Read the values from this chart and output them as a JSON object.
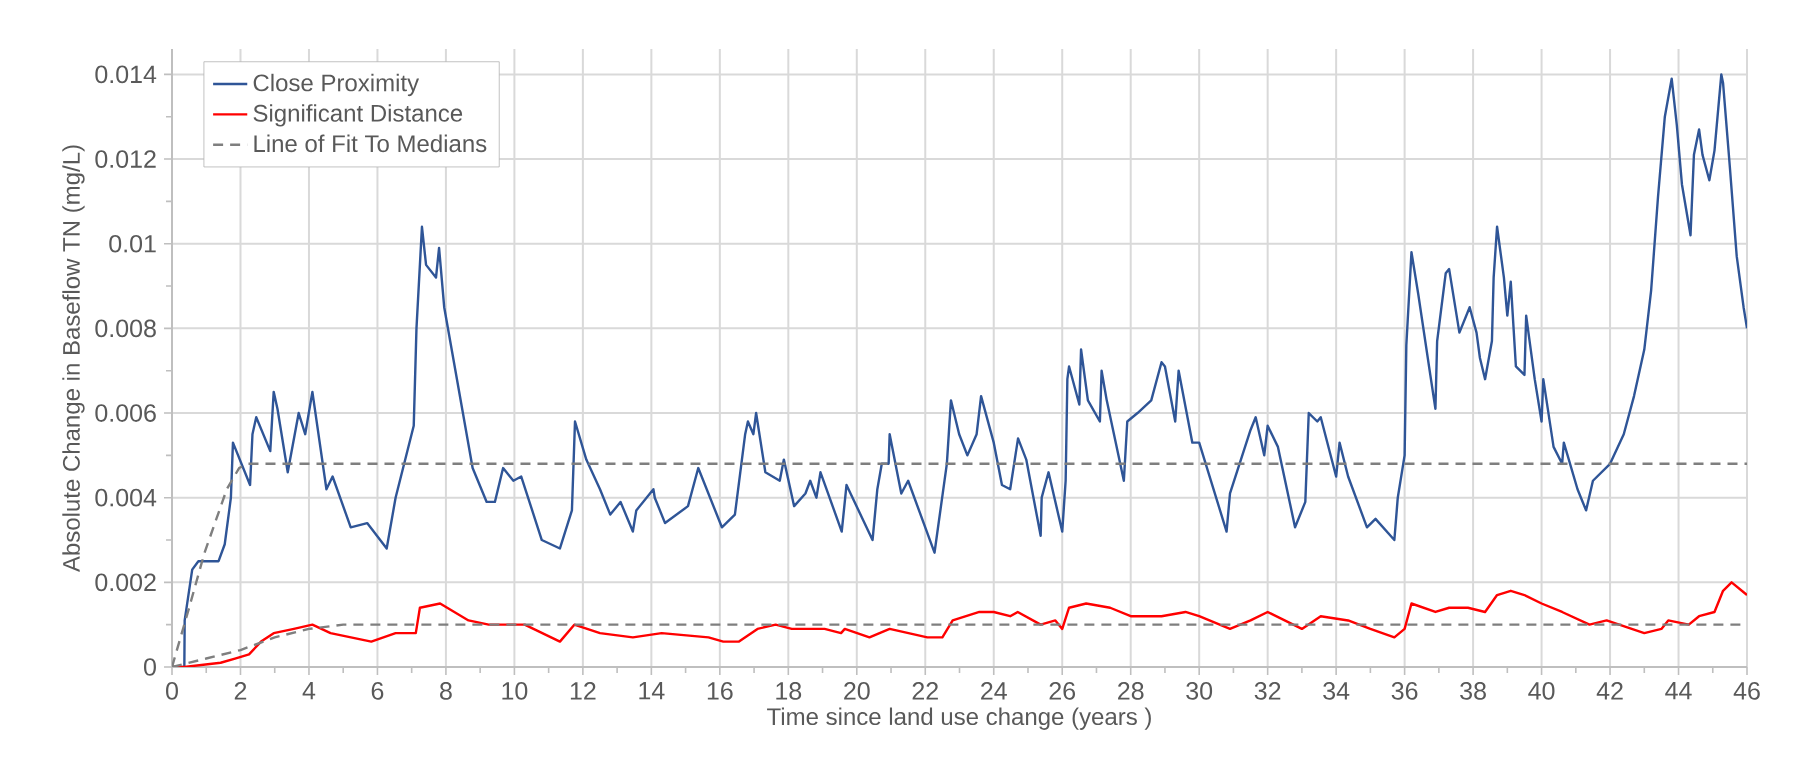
{
  "chart_data": {
    "type": "line",
    "xlabel": "Time since land use change (years )",
    "ylabel": "Absolute Change in Baseflow TN (mg/L)",
    "xlim": [
      0,
      46
    ],
    "ylim": [
      0,
      0.0146
    ],
    "xticks": [
      0,
      2,
      4,
      6,
      8,
      10,
      12,
      14,
      16,
      18,
      20,
      22,
      24,
      26,
      28,
      30,
      32,
      34,
      36,
      38,
      40,
      42,
      44,
      46
    ],
    "yticks": [
      0,
      0.002,
      0.004,
      0.006,
      0.008,
      0.01,
      0.012,
      0.014
    ],
    "grid": true,
    "legend": "top left",
    "line_style": "solid",
    "series": [
      {
        "name": "Close Proximity",
        "color": "#2f5597",
        "x": [
          0,
          0.36,
          0.37,
          0.59,
          0.77,
          1.36,
          1.54,
          1.72,
          1.78,
          2.28,
          2.35,
          2.46,
          2.87,
          2.97,
          3.08,
          3.38,
          3.7,
          3.89,
          4.1,
          4.51,
          4.69,
          5.22,
          5.7,
          6.27,
          6.53,
          7.06,
          7.14,
          7.3,
          7.42,
          7.71,
          7.8,
          7.95,
          8.3,
          8.78,
          9.19,
          9.43,
          9.67,
          9.97,
          10.2,
          10.8,
          11.33,
          11.68,
          11.77,
          12.1,
          12.5,
          12.8,
          13.1,
          13.46,
          13.56,
          14.06,
          14.1,
          14.4,
          15.07,
          15.37,
          16.06,
          16.44,
          16.74,
          16.82,
          16.98,
          17.06,
          17.33,
          17.75,
          17.87,
          18.17,
          18.5,
          18.64,
          18.82,
          18.94,
          19.56,
          19.7,
          20.46,
          20.6,
          20.73,
          20.93,
          20.96,
          21.3,
          21.5,
          22.27,
          22.63,
          22.75,
          22.99,
          23.23,
          23.5,
          23.63,
          24.0,
          24.24,
          24.48,
          24.71,
          24.95,
          25.37,
          25.4,
          25.6,
          26.0,
          26.1,
          26.15,
          26.2,
          26.5,
          26.55,
          26.6,
          26.75,
          27.1,
          27.15,
          27.3,
          27.8,
          27.9,
          28.2,
          28.6,
          28.9,
          29.0,
          29.3,
          29.4,
          29.8,
          30.0,
          30.8,
          30.9,
          31.5,
          31.65,
          31.9,
          32.0,
          32.3,
          32.8,
          33.1,
          33.2,
          33.45,
          33.55,
          34.0,
          34.1,
          34.35,
          34.9,
          35.15,
          35.7,
          35.8,
          36.0,
          36.05,
          36.2,
          36.4,
          36.75,
          36.9,
          36.95,
          37.2,
          37.3,
          37.6,
          37.9,
          38.1,
          38.2,
          38.35,
          38.55,
          38.6,
          38.7,
          38.9,
          39.0,
          39.1,
          39.25,
          39.5,
          39.55,
          39.8,
          40.0,
          40.05,
          40.35,
          40.6,
          40.65,
          41.05,
          41.3,
          41.5,
          42.0,
          42.4,
          42.7,
          43.0,
          43.2,
          43.4,
          43.6,
          43.8,
          43.95,
          44.1,
          44.35,
          44.45,
          44.6,
          44.7,
          44.9,
          45.05,
          45.25,
          45.3,
          45.5,
          45.7,
          45.9,
          46.0
        ],
        "values": [
          0,
          0,
          0.0011,
          0.0023,
          0.0025,
          0.0025,
          0.0029,
          0.004,
          0.0053,
          0.0043,
          0.0055,
          0.0059,
          0.0051,
          0.0065,
          0.0061,
          0.0046,
          0.006,
          0.0055,
          0.0065,
          0.0042,
          0.0045,
          0.0033,
          0.0034,
          0.0028,
          0.004,
          0.0057,
          0.008,
          0.0104,
          0.0095,
          0.0092,
          0.0099,
          0.0085,
          0.0069,
          0.0047,
          0.0039,
          0.0039,
          0.0047,
          0.0044,
          0.0045,
          0.003,
          0.0028,
          0.0037,
          0.0058,
          0.0049,
          0.0042,
          0.0036,
          0.0039,
          0.0032,
          0.0037,
          0.0042,
          0.004,
          0.0034,
          0.0038,
          0.0047,
          0.0033,
          0.0036,
          0.0055,
          0.0058,
          0.0055,
          0.006,
          0.0046,
          0.0044,
          0.0049,
          0.0038,
          0.0041,
          0.0044,
          0.004,
          0.0046,
          0.0032,
          0.0043,
          0.003,
          0.0042,
          0.0048,
          0.0048,
          0.0055,
          0.0041,
          0.0044,
          0.0027,
          0.0048,
          0.0063,
          0.0055,
          0.005,
          0.0055,
          0.0064,
          0.0053,
          0.0043,
          0.0042,
          0.0054,
          0.0049,
          0.0031,
          0.004,
          0.0046,
          0.0032,
          0.0044,
          0.0068,
          0.0071,
          0.0062,
          0.0075,
          0.0072,
          0.0063,
          0.0058,
          0.007,
          0.0063,
          0.0044,
          0.0058,
          0.006,
          0.0063,
          0.0072,
          0.0071,
          0.0058,
          0.007,
          0.0053,
          0.0053,
          0.0032,
          0.0041,
          0.0056,
          0.0059,
          0.005,
          0.0057,
          0.0052,
          0.0033,
          0.0039,
          0.006,
          0.0058,
          0.0059,
          0.0045,
          0.0053,
          0.0045,
          0.0033,
          0.0035,
          0.003,
          0.004,
          0.005,
          0.0076,
          0.0098,
          0.0088,
          0.0069,
          0.0061,
          0.0077,
          0.0093,
          0.0094,
          0.0079,
          0.0085,
          0.0079,
          0.0073,
          0.0068,
          0.0077,
          0.0092,
          0.0104,
          0.0092,
          0.0083,
          0.0091,
          0.0071,
          0.0069,
          0.0083,
          0.0068,
          0.0058,
          0.0068,
          0.0052,
          0.0048,
          0.0053,
          0.0042,
          0.0037,
          0.0044,
          0.0048,
          0.0055,
          0.0064,
          0.0075,
          0.0089,
          0.0111,
          0.013,
          0.0139,
          0.0128,
          0.0114,
          0.0102,
          0.0121,
          0.0127,
          0.0121,
          0.0115,
          0.0122,
          0.014,
          0.0138,
          0.0118,
          0.0097,
          0.0085,
          0.008
        ]
      },
      {
        "name": "Significant Distance",
        "color": "#ff0000",
        "x": [
          0,
          0.36,
          1.42,
          1.84,
          2.25,
          2.6,
          2.97,
          3.56,
          4.1,
          4.63,
          5.82,
          6.53,
          7.12,
          7.24,
          7.83,
          8.66,
          9.25,
          10.3,
          11.33,
          11.75,
          12.5,
          13.46,
          14.3,
          15.67,
          16.1,
          16.56,
          17.1,
          17.63,
          18.1,
          19.06,
          19.54,
          19.65,
          20.37,
          20.96,
          22.06,
          22.5,
          22.8,
          23.58,
          24.0,
          24.48,
          24.7,
          25.37,
          25.8,
          26.0,
          26.2,
          26.7,
          27.4,
          28.0,
          28.9,
          29.6,
          30.0,
          30.9,
          31.5,
          32.0,
          33.0,
          33.55,
          34.35,
          35.0,
          35.7,
          36.0,
          36.2,
          36.9,
          37.3,
          37.85,
          38.35,
          38.7,
          39.1,
          39.5,
          40.0,
          40.6,
          41.4,
          41.9,
          43.0,
          43.5,
          43.7,
          44.3,
          44.6,
          45.05,
          45.3,
          45.55,
          46.0
        ],
        "values": [
          0,
          0,
          0.0001,
          0.0002,
          0.0003,
          0.0006,
          0.0008,
          0.0009,
          0.001,
          0.0008,
          0.0006,
          0.0008,
          0.0008,
          0.0014,
          0.0015,
          0.0011,
          0.001,
          0.001,
          0.0006,
          0.001,
          0.0008,
          0.0007,
          0.0008,
          0.0007,
          0.0006,
          0.0006,
          0.0009,
          0.001,
          0.0009,
          0.0009,
          0.0008,
          0.0009,
          0.0007,
          0.0009,
          0.0007,
          0.0007,
          0.0011,
          0.0013,
          0.0013,
          0.0012,
          0.0013,
          0.001,
          0.0011,
          0.0009,
          0.0014,
          0.0015,
          0.0014,
          0.0012,
          0.0012,
          0.0013,
          0.0012,
          0.0009,
          0.0011,
          0.0013,
          0.0009,
          0.0012,
          0.0011,
          0.0009,
          0.0007,
          0.0009,
          0.0015,
          0.0013,
          0.0014,
          0.0014,
          0.0013,
          0.0017,
          0.0018,
          0.0017,
          0.0015,
          0.0013,
          0.001,
          0.0011,
          0.0008,
          0.0009,
          0.0011,
          0.001,
          0.0012,
          0.0013,
          0.0018,
          0.002,
          0.0017
        ]
      },
      {
        "name": "Line of Fit To Medians",
        "color": "#7f7f7f",
        "line_style": "dashed",
        "x": [
          0,
          0.5,
          0.95,
          1.6,
          1.96,
          2.2,
          46,
          null,
          0,
          1,
          2,
          3,
          4,
          5,
          46
        ],
        "values": [
          0,
          0.0014,
          0.0027,
          0.0042,
          0.0047,
          0.0048,
          0.0048,
          null,
          0,
          0.0002,
          0.0004,
          0.0007,
          0.0009,
          0.001,
          0.001
        ]
      }
    ]
  }
}
